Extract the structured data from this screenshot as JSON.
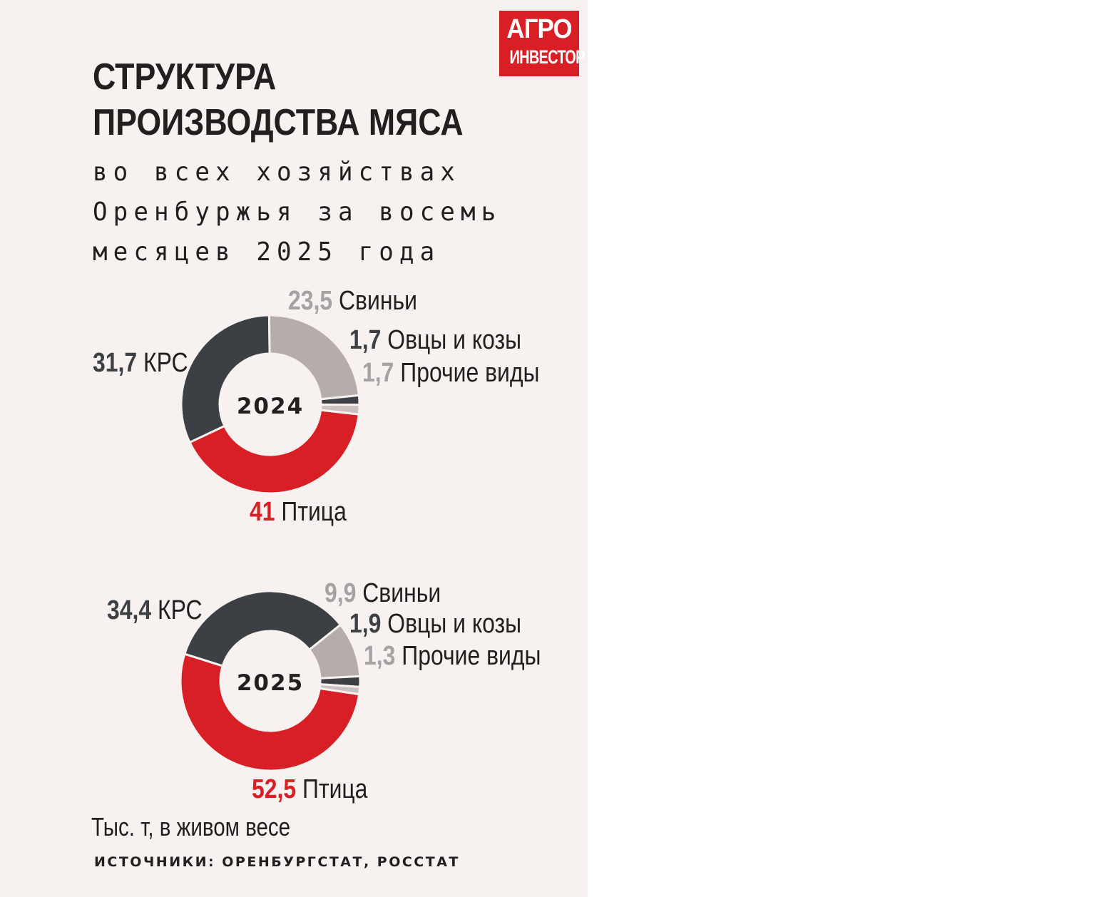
{
  "logo": {
    "line1": "АГРО",
    "line2": "ИНВЕСТОР"
  },
  "title_lines": [
    "СТРУКТУРА",
    "ПРОИЗВОДСТВА МЯСА"
  ],
  "subtitle_lines": [
    "во всех хозяйствах",
    "Оренбуржья за восемь",
    "месяцев 2025 года"
  ],
  "colors": {
    "background": "#f7f1ef",
    "poultry": "#d81f26",
    "cattle": "#3c3f43",
    "pigs": "#b4adac",
    "sheep_goats": "#3c3f43",
    "other": "#c9c2c1",
    "logo": "#d81f26"
  },
  "chart_data": [
    {
      "type": "pie",
      "center_label": "2024",
      "series": [
        {
          "name": "Птица",
          "value": 41,
          "label": "41",
          "color": "#d81f26"
        },
        {
          "name": "КРС",
          "value": 31.7,
          "label": "31,7",
          "color": "#3c3f43"
        },
        {
          "name": "Свиньи",
          "value": 23.5,
          "label": "23,5",
          "color": "#b4adac"
        },
        {
          "name": "Овцы и козы",
          "value": 1.7,
          "label": "1,7",
          "color": "#3c3f43"
        },
        {
          "name": "Прочие виды",
          "value": 1.7,
          "label": "1,7",
          "color": "#c9c2c1"
        }
      ]
    },
    {
      "type": "pie",
      "center_label": "2025",
      "series": [
        {
          "name": "Птица",
          "value": 52.5,
          "label": "52,5",
          "color": "#d81f26"
        },
        {
          "name": "КРС",
          "value": 34.4,
          "label": "34,4",
          "color": "#3c3f43"
        },
        {
          "name": "Свиньи",
          "value": 9.9,
          "label": "9,9",
          "color": "#b4adac"
        },
        {
          "name": "Овцы и козы",
          "value": 1.9,
          "label": "1,9",
          "color": "#3c3f43"
        },
        {
          "name": "Прочие виды",
          "value": 1.3,
          "label": "1,3",
          "color": "#c9c2c1"
        }
      ]
    }
  ],
  "units_note": "Тыс. т, в живом весе",
  "source": "ИСТОЧНИКИ: ОРЕНБУРГСТАТ, РОССТАТ"
}
